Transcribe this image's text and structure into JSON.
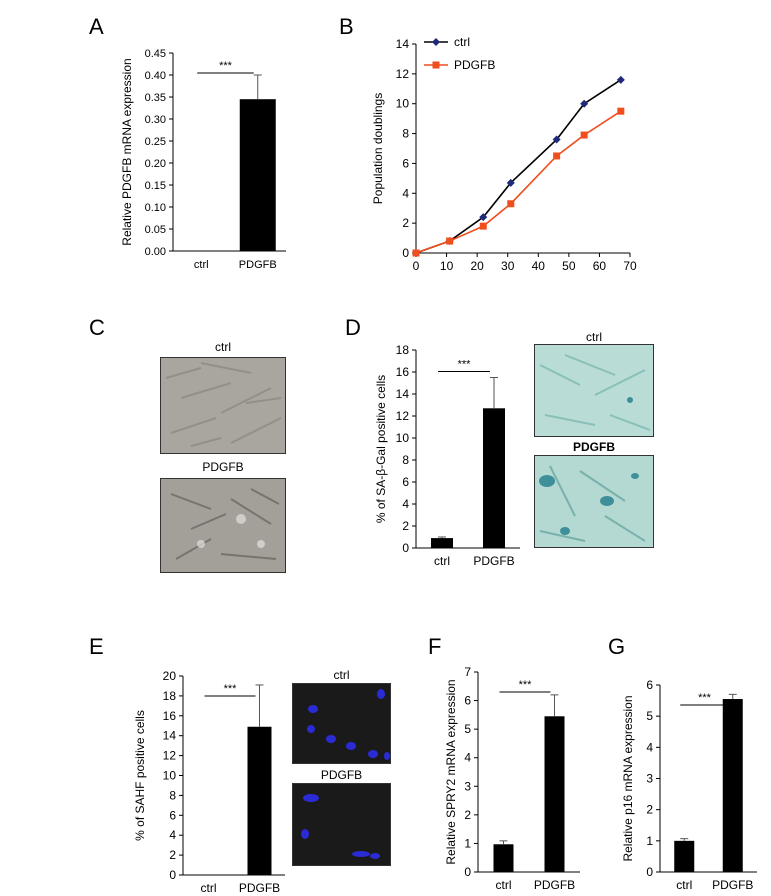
{
  "panels": {
    "A": {
      "letter": "A"
    },
    "B": {
      "letter": "B"
    },
    "C": {
      "letter": "C",
      "img_top_label": "ctrl",
      "img_bottom_label": "PDGFB"
    },
    "D": {
      "letter": "D",
      "img_top_label": "ctrl",
      "img_bottom_label": "PDGFB"
    },
    "E": {
      "letter": "E",
      "img_top_label": "ctrl",
      "img_bottom_label": "PDGFB"
    },
    "F": {
      "letter": "F"
    },
    "G": {
      "letter": "G"
    }
  },
  "colors": {
    "bar": "#000000",
    "ctrl_line": "#000000",
    "ctrl_marker": "#1f2a7a",
    "pdgfb_line": "#f04e1d",
    "bf_cells": "#a9a59f",
    "bgal": "#b9dcd6",
    "bgal_blue": "#3f8f9a",
    "dapi_bg": "#1a1a1a",
    "dapi_nuclei": "#2b2bd6"
  },
  "chart_data": [
    {
      "id": "A",
      "type": "bar",
      "categories": [
        "ctrl",
        "PDGFB"
      ],
      "values": [
        0.0,
        0.345
      ],
      "errors": [
        0.0,
        0.055
      ],
      "ylabel": "Relative PDGFB mRNA expression",
      "ylim": [
        0,
        0.45
      ],
      "yticks": [
        "0.00",
        "0.05",
        "0.10",
        "0.15",
        "0.20",
        "0.25",
        "0.30",
        "0.35",
        "0.40",
        "0.45"
      ],
      "significance": "***"
    },
    {
      "id": "B",
      "type": "line",
      "ylabel": "Population doublings",
      "ylim": [
        0,
        14
      ],
      "xlim": [
        0,
        70
      ],
      "yticks": [
        "0",
        "2",
        "4",
        "6",
        "8",
        "10",
        "12",
        "14"
      ],
      "xticks": [
        "0",
        "10",
        "20",
        "30",
        "40",
        "50",
        "60",
        "70"
      ],
      "series": [
        {
          "name": "ctrl",
          "x": [
            0,
            11,
            22,
            31,
            46,
            55,
            67
          ],
          "y": [
            0,
            0.8,
            2.4,
            4.7,
            7.6,
            10.0,
            11.6
          ]
        },
        {
          "name": "PDGFB",
          "x": [
            0,
            11,
            22,
            31,
            46,
            55,
            67
          ],
          "y": [
            0,
            0.8,
            1.8,
            3.3,
            6.5,
            7.9,
            9.5
          ]
        }
      ],
      "legend_position": "top-left"
    },
    {
      "id": "D",
      "type": "bar",
      "categories": [
        "ctrl",
        "PDGFB"
      ],
      "values": [
        0.9,
        12.7
      ],
      "errors": [
        0.1,
        2.8
      ],
      "ylabel": "% of SA-β-Gal positive cells",
      "ylim": [
        0,
        18
      ],
      "yticks": [
        "0",
        "2",
        "4",
        "6",
        "8",
        "10",
        "12",
        "14",
        "16",
        "18"
      ],
      "significance": "***"
    },
    {
      "id": "E",
      "type": "bar",
      "categories": [
        "ctrl",
        "PDGFB"
      ],
      "values": [
        0.0,
        14.9
      ],
      "errors": [
        0.0,
        4.2
      ],
      "ylabel": "% of SAHF positive cells",
      "ylim": [
        0,
        20
      ],
      "yticks": [
        "0",
        "2",
        "4",
        "6",
        "8",
        "10",
        "12",
        "14",
        "16",
        "18",
        "20"
      ],
      "significance": "***"
    },
    {
      "id": "F",
      "type": "bar",
      "categories": [
        "ctrl",
        "PDGFB"
      ],
      "values": [
        0.97,
        5.45
      ],
      "errors": [
        0.12,
        0.75
      ],
      "ylabel": "Relative SPRY2 mRNA expression",
      "ylim": [
        0,
        7
      ],
      "yticks": [
        "0",
        "1",
        "2",
        "3",
        "4",
        "5",
        "6",
        "7"
      ],
      "significance": "***"
    },
    {
      "id": "G",
      "type": "bar",
      "categories": [
        "ctrl",
        "PDGFB"
      ],
      "values": [
        1.0,
        5.55
      ],
      "errors": [
        0.07,
        0.15
      ],
      "ylabel": "Relative p16 mRNA expression",
      "ylim": [
        0,
        6
      ],
      "yticks": [
        "0",
        "1",
        "2",
        "3",
        "4",
        "5",
        "6"
      ],
      "significance": "***"
    }
  ]
}
